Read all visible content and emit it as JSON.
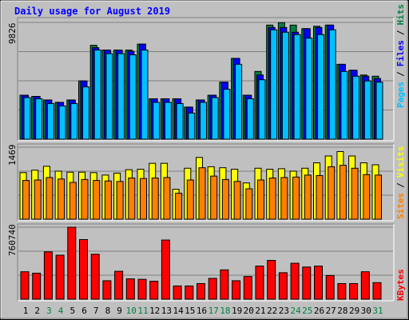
{
  "title": "Daily usage for August 2019",
  "colors": {
    "background": "#c0c0c0",
    "title": "#0000ff",
    "hits": "#008040",
    "files": "#0000ff",
    "pages": "#00c0ff",
    "visits": "#ffff00",
    "sites": "#ff8000",
    "kbytes": "#ff0000",
    "weekend_label": "#008040",
    "weekday_label": "#000000",
    "separator": "#000000"
  },
  "labels": {
    "top_max": "9826",
    "mid_max": "1469",
    "bottom_max": "760740",
    "top_legend": [
      "Pages",
      "Files",
      "Hits"
    ],
    "mid_legend": [
      "Sites",
      "Visits"
    ],
    "bottom_legend": [
      "KBytes"
    ],
    "separator": "/"
  },
  "chart_data": {
    "type": "bar",
    "title": "Daily usage for August 2019",
    "categories": [
      "1",
      "2",
      "3",
      "4",
      "5",
      "6",
      "7",
      "8",
      "9",
      "10",
      "11",
      "12",
      "13",
      "14",
      "15",
      "16",
      "17",
      "18",
      "19",
      "20",
      "21",
      "22",
      "23",
      "24",
      "25",
      "26",
      "27",
      "28",
      "29",
      "30",
      "31"
    ],
    "weekend_days": [
      "3",
      "4",
      "10",
      "11",
      "17",
      "18",
      "24",
      "25",
      "31"
    ],
    "panels": [
      {
        "name": "hits-files-pages",
        "ylim": [
          0,
          9826
        ],
        "legend_placement": "right",
        "series": [
          {
            "name": "Hits",
            "color": "#008040",
            "values": [
              3700,
              3600,
              3300,
              3100,
              3300,
              4900,
              7900,
              7500,
              7500,
              7500,
              8000,
              3400,
              3400,
              3400,
              2700,
              3300,
              3700,
              4800,
              6800,
              3700,
              5700,
              9600,
              9800,
              9600,
              9300,
              9500,
              9600,
              6300,
              5800,
              5400,
              5300
            ]
          },
          {
            "name": "Files",
            "color": "#0000ff",
            "values": [
              3700,
              3600,
              3300,
              3100,
              3300,
              4900,
              7700,
              7500,
              7500,
              7400,
              8000,
              3400,
              3400,
              3400,
              2700,
              3300,
              3700,
              4800,
              6800,
              3700,
              5400,
              9400,
              9400,
              9000,
              9300,
              9400,
              9600,
              6300,
              5800,
              5300,
              5100
            ]
          },
          {
            "name": "Pages",
            "color": "#00c0ff",
            "values": [
              3500,
              3400,
              3000,
              2800,
              3000,
              4400,
              7500,
              7200,
              7200,
              7100,
              7500,
              3100,
              3100,
              3000,
              2200,
              3100,
              3500,
              4200,
              6300,
              3400,
              5000,
              9200,
              9000,
              8800,
              8500,
              8800,
              9200,
              5700,
              5300,
              4900,
              4800
            ]
          }
        ]
      },
      {
        "name": "visits-sites",
        "ylim": [
          0,
          1469
        ],
        "legend_placement": "right",
        "series": [
          {
            "name": "Visits",
            "color": "#ffff00",
            "values": [
              950,
              1000,
              1080,
              980,
              960,
              960,
              950,
              900,
              940,
              1010,
              1020,
              1140,
              1140,
              610,
              1040,
              1260,
              1070,
              1050,
              1020,
              740,
              1040,
              1020,
              1030,
              980,
              1040,
              1150,
              1290,
              1380,
              1290,
              1150,
              1110
            ]
          },
          {
            "name": "Sites",
            "color": "#ff8000",
            "values": [
              790,
              800,
              850,
              820,
              750,
              810,
              790,
              780,
              770,
              840,
              830,
              840,
              850,
              530,
              800,
              1050,
              880,
              810,
              770,
              620,
              800,
              840,
              850,
              860,
              900,
              890,
              1070,
              1100,
              1040,
              910,
              900
            ]
          }
        ]
      },
      {
        "name": "kbytes",
        "ylim": [
          0,
          760740
        ],
        "legend_placement": "right",
        "series": [
          {
            "name": "KBytes",
            "color": "#ff0000",
            "values": [
              290000,
              275000,
              500000,
              465000,
              760740,
              630000,
              475000,
              195000,
              295000,
              215000,
              210000,
              190000,
              625000,
              140000,
              140000,
              165000,
              220000,
              310000,
              195000,
              240000,
              350000,
              410000,
              280000,
              380000,
              340000,
              350000,
              250000,
              165000,
              165000,
              290000,
              175000
            ]
          }
        ]
      }
    ]
  }
}
